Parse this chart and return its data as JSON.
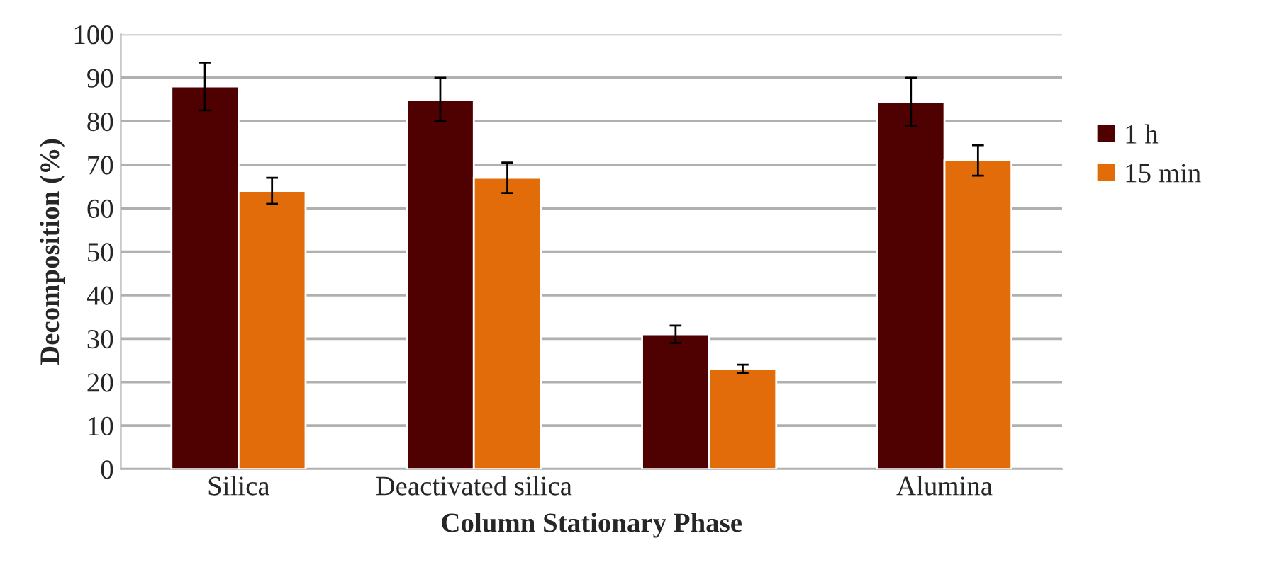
{
  "chart_data": {
    "type": "bar",
    "xlabel": "Column Stationary Phase",
    "ylabel": "Decomposition (%)",
    "categories": [
      "Silica",
      "Deactivated silica",
      null,
      "Alumina"
    ],
    "series": [
      {
        "name": "1 h",
        "color": "#4f0000",
        "values": [
          88,
          85,
          31,
          84.5
        ],
        "errors": [
          5.5,
          5,
          2,
          5.5
        ]
      },
      {
        "name": "15 min",
        "color": "#e36c0a",
        "values": [
          64,
          67,
          23,
          71
        ],
        "errors": [
          3,
          3.5,
          1,
          3.5
        ]
      }
    ],
    "ylim": [
      0,
      100
    ],
    "yticks": [
      0,
      10,
      20,
      30,
      40,
      50,
      60,
      70,
      80,
      90,
      100
    ],
    "grid": "y",
    "legend": "right"
  }
}
